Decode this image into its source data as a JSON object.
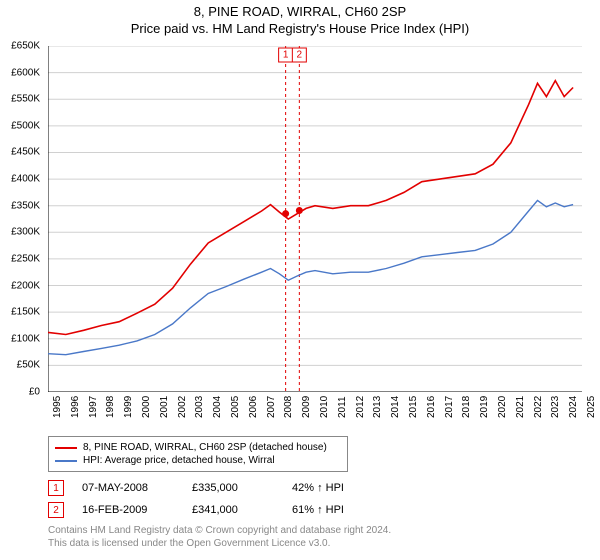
{
  "title1": "8, PINE ROAD, WIRRAL, CH60 2SP",
  "title2": "Price paid vs. HM Land Registry's House Price Index (HPI)",
  "chart": {
    "type": "line",
    "background_color": "#ffffff",
    "grid_color": "#d0d0d0",
    "axis_color": "#000000",
    "y": {
      "min": 0,
      "max": 650000,
      "step": 50000,
      "format_prefix": "£",
      "format_suffix": "K",
      "labels": [
        "£0",
        "£50K",
        "£100K",
        "£150K",
        "£200K",
        "£250K",
        "£300K",
        "£350K",
        "£400K",
        "£450K",
        "£500K",
        "£550K",
        "£600K",
        "£650K"
      ]
    },
    "x": {
      "min": 1995,
      "max": 2025,
      "step": 1,
      "labels": [
        "1995",
        "1996",
        "1997",
        "1998",
        "1999",
        "2000",
        "2001",
        "2002",
        "2003",
        "2004",
        "2005",
        "2006",
        "2007",
        "2008",
        "2009",
        "2010",
        "2011",
        "2012",
        "2013",
        "2014",
        "2015",
        "2016",
        "2017",
        "2018",
        "2019",
        "2020",
        "2021",
        "2022",
        "2023",
        "2024",
        "2025"
      ]
    },
    "series": [
      {
        "name": "8, PINE ROAD, WIRRAL, CH60 2SP (detached house)",
        "color": "#e20000",
        "line_width": 1.6,
        "points": [
          [
            1995,
            112000
          ],
          [
            1996,
            108000
          ],
          [
            1997,
            116000
          ],
          [
            1998,
            125000
          ],
          [
            1999,
            132000
          ],
          [
            2000,
            148000
          ],
          [
            2001,
            165000
          ],
          [
            2002,
            195000
          ],
          [
            2003,
            240000
          ],
          [
            2004,
            280000
          ],
          [
            2005,
            300000
          ],
          [
            2006,
            320000
          ],
          [
            2007,
            340000
          ],
          [
            2007.5,
            352000
          ],
          [
            2008,
            338000
          ],
          [
            2008.5,
            325000
          ],
          [
            2009,
            335000
          ],
          [
            2009.5,
            345000
          ],
          [
            2010,
            350000
          ],
          [
            2011,
            345000
          ],
          [
            2012,
            350000
          ],
          [
            2013,
            350000
          ],
          [
            2014,
            360000
          ],
          [
            2015,
            375000
          ],
          [
            2016,
            395000
          ],
          [
            2017,
            400000
          ],
          [
            2018,
            405000
          ],
          [
            2019,
            410000
          ],
          [
            2020,
            428000
          ],
          [
            2021,
            468000
          ],
          [
            2022,
            540000
          ],
          [
            2022.5,
            580000
          ],
          [
            2023,
            555000
          ],
          [
            2023.5,
            585000
          ],
          [
            2024,
            555000
          ],
          [
            2024.5,
            572000
          ]
        ]
      },
      {
        "name": "HPI: Average price, detached house, Wirral",
        "color": "#4a78c8",
        "line_width": 1.4,
        "points": [
          [
            1995,
            72000
          ],
          [
            1996,
            70000
          ],
          [
            1997,
            76000
          ],
          [
            1998,
            82000
          ],
          [
            1999,
            88000
          ],
          [
            2000,
            96000
          ],
          [
            2001,
            108000
          ],
          [
            2002,
            128000
          ],
          [
            2003,
            158000
          ],
          [
            2004,
            185000
          ],
          [
            2005,
            198000
          ],
          [
            2006,
            212000
          ],
          [
            2007,
            225000
          ],
          [
            2007.5,
            232000
          ],
          [
            2008,
            222000
          ],
          [
            2008.5,
            210000
          ],
          [
            2009,
            218000
          ],
          [
            2009.5,
            225000
          ],
          [
            2010,
            228000
          ],
          [
            2011,
            222000
          ],
          [
            2012,
            225000
          ],
          [
            2013,
            225000
          ],
          [
            2014,
            232000
          ],
          [
            2015,
            242000
          ],
          [
            2016,
            254000
          ],
          [
            2017,
            258000
          ],
          [
            2018,
            262000
          ],
          [
            2019,
            266000
          ],
          [
            2020,
            278000
          ],
          [
            2021,
            300000
          ],
          [
            2022,
            340000
          ],
          [
            2022.5,
            360000
          ],
          [
            2023,
            348000
          ],
          [
            2023.5,
            355000
          ],
          [
            2024,
            348000
          ],
          [
            2024.5,
            352000
          ]
        ]
      }
    ],
    "event_markers": [
      {
        "id": "1",
        "x": 2008.35,
        "y": 335000,
        "color": "#e20000",
        "date": "07-MAY-2008",
        "price": "£335,000",
        "hpi_delta": "42% ↑ HPI"
      },
      {
        "id": "2",
        "x": 2009.12,
        "y": 341000,
        "color": "#e20000",
        "date": "16-FEB-2009",
        "price": "£341,000",
        "hpi_delta": "61% ↑ HPI"
      }
    ],
    "event_line_color": "#e20000",
    "event_line_dash": "3,3",
    "point_marker_color": "#e20000",
    "point_marker_radius": 3.5
  },
  "legend": {
    "rows": [
      {
        "color": "#e20000",
        "label": "8, PINE ROAD, WIRRAL, CH60 2SP (detached house)"
      },
      {
        "color": "#4a78c8",
        "label": "HPI: Average price, detached house, Wirral"
      }
    ]
  },
  "footer": {
    "line1": "Contains HM Land Registry data © Crown copyright and database right 2024.",
    "line2": "This data is licensed under the Open Government Licence v3.0."
  }
}
